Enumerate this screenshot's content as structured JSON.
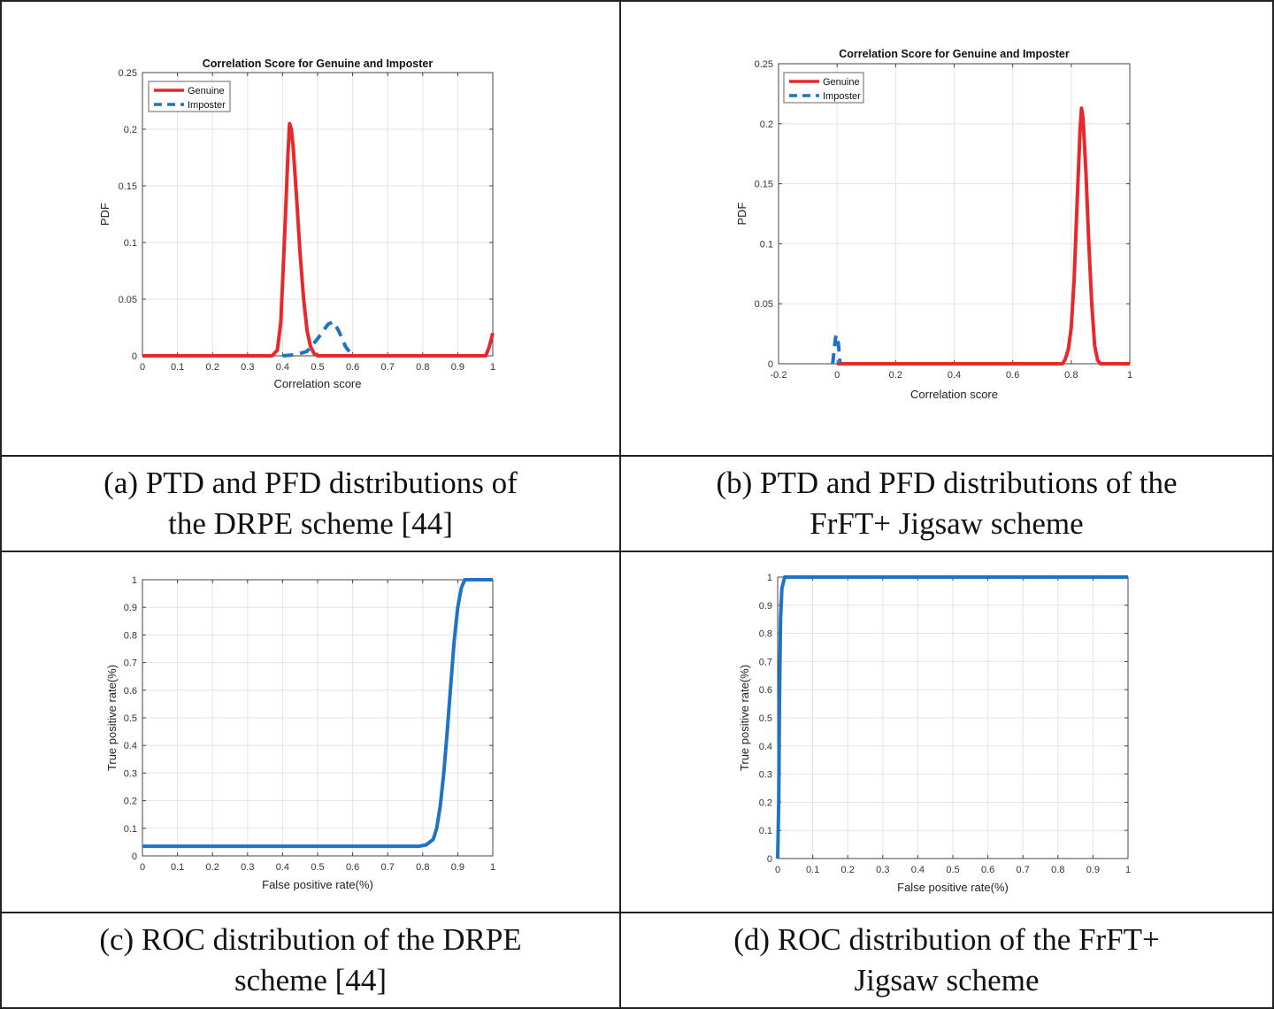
{
  "captions": {
    "a": {
      "line1": "(a) PTD and PFD distributions of",
      "line2": "the DRPE scheme [44]"
    },
    "b": {
      "line1": "(b) PTD and PFD distributions of the",
      "line2": "FrFT+ Jigsaw scheme"
    },
    "c": {
      "line1": "(c) ROC distribution of the DRPE",
      "line2": "scheme [44]"
    },
    "d": {
      "line1": "(d) ROC distribution of the FrFT+",
      "line2": "Jigsaw scheme"
    }
  },
  "colors": {
    "genuine": "#e8282a",
    "imposter": "#1f73c4",
    "roc": "#1f73c4",
    "grid": "#e3e3e3",
    "axis": "#444444"
  },
  "chart_data": [
    {
      "id": "a",
      "type": "line",
      "title": "Correlation Score for Genuine and Imposter",
      "xlabel": "Correlation score",
      "ylabel": "PDF",
      "xlim": [
        0,
        1
      ],
      "ylim": [
        0,
        0.25
      ],
      "xticks": [
        0,
        0.1,
        0.2,
        0.3,
        0.4,
        0.5,
        0.6,
        0.7,
        0.8,
        0.9,
        1
      ],
      "xtick_labels": [
        "0",
        "0.1",
        "0.2",
        "0.3",
        "0.4",
        "0.5",
        "0.6",
        "0.7",
        "0.8",
        "0.9",
        "1"
      ],
      "yticks": [
        0,
        0.05,
        0.1,
        0.15,
        0.2,
        0.25
      ],
      "ytick_labels": [
        "0",
        "0.05",
        "0.1",
        "0.15",
        "0.2",
        "0.25"
      ],
      "grid": true,
      "legend": "top-left",
      "series": [
        {
          "name": "Genuine",
          "style": "solid",
          "color": "#e8282a",
          "x": [
            0,
            0.37,
            0.385,
            0.395,
            0.405,
            0.415,
            0.42,
            0.425,
            0.43,
            0.44,
            0.45,
            0.46,
            0.47,
            0.48,
            0.49,
            0.5,
            0.98,
            0.99,
            1.0
          ],
          "y": [
            0,
            0,
            0.005,
            0.03,
            0.1,
            0.175,
            0.205,
            0.2,
            0.185,
            0.14,
            0.09,
            0.05,
            0.022,
            0.008,
            0.002,
            0,
            0,
            0.008,
            0.02
          ]
        },
        {
          "name": "Imposter",
          "style": "dashed",
          "color": "#1f73c4",
          "x": [
            0.4,
            0.44,
            0.47,
            0.5,
            0.53,
            0.545,
            0.56,
            0.58,
            0.6
          ],
          "y": [
            0,
            0.001,
            0.004,
            0.015,
            0.028,
            0.03,
            0.022,
            0.008,
            0
          ]
        }
      ]
    },
    {
      "id": "b",
      "type": "line",
      "title": "Correlation Score for Genuine and Imposter",
      "xlabel": "Correlation score",
      "ylabel": "PDF",
      "xlim": [
        -0.2,
        1
      ],
      "ylim": [
        0,
        0.25
      ],
      "xticks": [
        -0.2,
        0,
        0.2,
        0.4,
        0.6,
        0.8,
        1
      ],
      "xtick_labels": [
        "-0.2",
        "0",
        "0.2",
        "0.4",
        "0.6",
        "0.8",
        "1"
      ],
      "yticks": [
        0,
        0.05,
        0.1,
        0.15,
        0.2,
        0.25
      ],
      "ytick_labels": [
        "0",
        "0.05",
        "0.1",
        "0.15",
        "0.2",
        "0.25"
      ],
      "grid": true,
      "legend": "top-left",
      "series": [
        {
          "name": "Genuine",
          "style": "solid",
          "color": "#e8282a",
          "x": [
            0,
            0.77,
            0.78,
            0.79,
            0.8,
            0.81,
            0.82,
            0.83,
            0.835,
            0.84,
            0.85,
            0.86,
            0.87,
            0.88,
            0.89,
            0.9,
            1.0
          ],
          "y": [
            0,
            0,
            0.004,
            0.012,
            0.03,
            0.07,
            0.135,
            0.195,
            0.213,
            0.205,
            0.16,
            0.1,
            0.05,
            0.015,
            0.003,
            0,
            0
          ]
        },
        {
          "name": "Imposter",
          "style": "dashed",
          "color": "#1f73c4",
          "x": [
            -0.015,
            -0.01,
            -0.005,
            0.0,
            0.005,
            0.01
          ],
          "y": [
            0,
            0.012,
            0.022,
            0.024,
            0.015,
            0
          ]
        }
      ]
    },
    {
      "id": "c",
      "type": "line",
      "title": "",
      "xlabel": "False positive rate(%)",
      "ylabel": "True positive rate(%)",
      "xlim": [
        0,
        1
      ],
      "ylim": [
        0,
        1
      ],
      "xticks": [
        0,
        0.1,
        0.2,
        0.3,
        0.4,
        0.5,
        0.6,
        0.7,
        0.8,
        0.9,
        1
      ],
      "xtick_labels": [
        "0",
        "0.1",
        "0.2",
        "0.3",
        "0.4",
        "0.5",
        "0.6",
        "0.7",
        "0.8",
        "0.9",
        "1"
      ],
      "yticks": [
        0,
        0.1,
        0.2,
        0.3,
        0.4,
        0.5,
        0.6,
        0.7,
        0.8,
        0.9,
        1
      ],
      "ytick_labels": [
        "0",
        "0.1",
        "0.2",
        "0.3",
        "0.4",
        "0.5",
        "0.6",
        "0.7",
        "0.8",
        "0.9",
        "1"
      ],
      "grid": true,
      "series": [
        {
          "name": "ROC",
          "style": "solid",
          "color": "#1f73c4",
          "x": [
            0,
            0.79,
            0.81,
            0.83,
            0.84,
            0.85,
            0.86,
            0.87,
            0.88,
            0.89,
            0.9,
            0.91,
            0.92,
            1.0
          ],
          "y": [
            0.035,
            0.035,
            0.04,
            0.06,
            0.1,
            0.18,
            0.3,
            0.45,
            0.62,
            0.78,
            0.9,
            0.97,
            1.0,
            1.0
          ]
        }
      ]
    },
    {
      "id": "d",
      "type": "line",
      "title": "",
      "xlabel": "False positive rate(%)",
      "ylabel": "True positive rate(%)",
      "xlim": [
        0,
        1
      ],
      "ylim": [
        0,
        1
      ],
      "xticks": [
        0,
        0.1,
        0.2,
        0.3,
        0.4,
        0.5,
        0.6,
        0.7,
        0.8,
        0.9,
        1
      ],
      "xtick_labels": [
        "0",
        "0.1",
        "0.2",
        "0.3",
        "0.4",
        "0.5",
        "0.6",
        "0.7",
        "0.8",
        "0.9",
        "1"
      ],
      "yticks": [
        0,
        0.1,
        0.2,
        0.3,
        0.4,
        0.5,
        0.6,
        0.7,
        0.8,
        0.9,
        1
      ],
      "ytick_labels": [
        "0",
        "0.1",
        "0.2",
        "0.3",
        "0.4",
        "0.5",
        "0.6",
        "0.7",
        "0.8",
        "0.9",
        "1"
      ],
      "grid": true,
      "series": [
        {
          "name": "ROC",
          "style": "solid",
          "color": "#1f73c4",
          "x": [
            0,
            0.003,
            0.005,
            0.008,
            0.012,
            0.02,
            1.0
          ],
          "y": [
            0,
            0.2,
            0.55,
            0.85,
            0.96,
            1.0,
            1.0
          ]
        }
      ]
    }
  ]
}
